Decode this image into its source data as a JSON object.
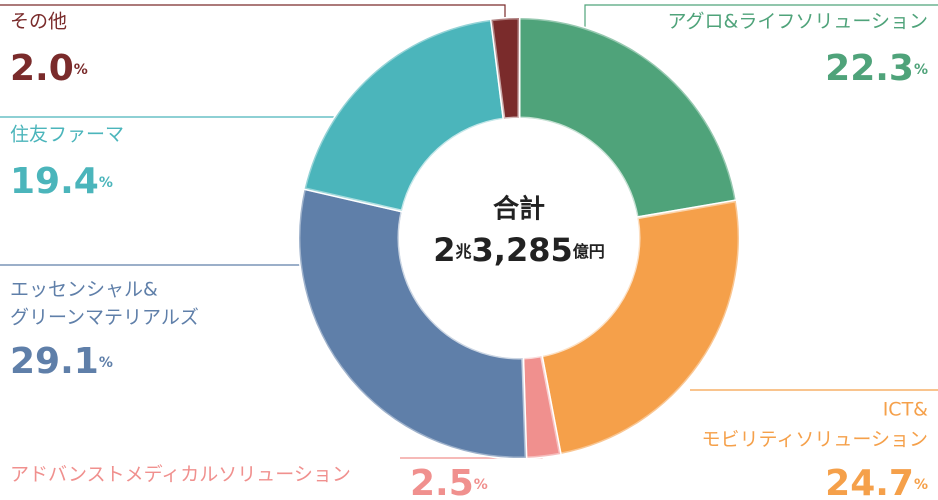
{
  "chart_data": {
    "type": "donut",
    "center_title": "合計",
    "total_parts": [
      "2",
      "兆",
      "3,285",
      "億円"
    ],
    "categories": [
      [
        "アグロ&ライフソリューション"
      ],
      [
        "ICT&",
        "モビリティソリューション"
      ],
      [
        "アドバンストメディカルソリューション"
      ],
      [
        "エッセンシャル&",
        "グリーンマテリアルズ"
      ],
      [
        "住友ファーマ"
      ],
      [
        "その他"
      ]
    ],
    "values": [
      22.3,
      24.7,
      2.5,
      29.1,
      19.4,
      2.0
    ],
    "value_labels": [
      "22.3%",
      "24.7%",
      "2.5%",
      "29.1%",
      "19.4%",
      "2.0%"
    ],
    "colors": [
      "#4fa37a",
      "#f5a04a",
      "#f0908e",
      "#5f7fa9",
      "#4bb5bb",
      "#7a2b2b"
    ]
  }
}
